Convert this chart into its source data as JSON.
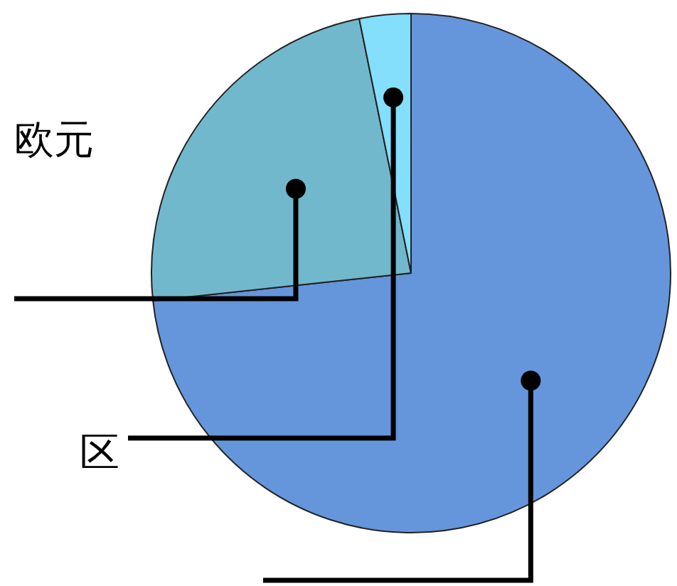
{
  "chart_data": {
    "type": "pie",
    "categories": [
      null,
      "欧元",
      "区"
    ],
    "values": [
      73.3,
      23.5,
      3.2
    ],
    "colors": [
      "#6596db",
      "#72b8cc",
      "#83dffc"
    ]
  }
}
